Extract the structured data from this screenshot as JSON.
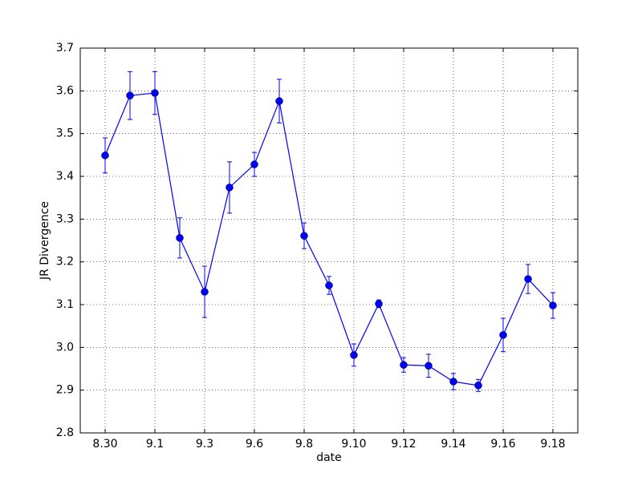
{
  "chart_data": {
    "type": "line",
    "xlabel": "date",
    "ylabel": "JR Divergence",
    "categories": [
      "8.30",
      null,
      "9.1",
      null,
      "9.3",
      null,
      "9.6",
      null,
      "9.8",
      null,
      "9.10",
      null,
      "9.12",
      null,
      "9.14",
      null,
      "9.16",
      null,
      "9.18"
    ],
    "series": [
      {
        "color": "#0000ff",
        "values": [
          3.449,
          3.589,
          3.595,
          3.256,
          3.13,
          3.374,
          3.428,
          3.576,
          3.261,
          3.145,
          2.982,
          3.102,
          2.959,
          2.957,
          2.92,
          2.911,
          3.029,
          3.16,
          3.098
        ],
        "errors": [
          0.041,
          0.056,
          0.05,
          0.047,
          0.06,
          0.06,
          0.028,
          0.051,
          0.03,
          0.021,
          0.026,
          0.009,
          0.017,
          0.027,
          0.019,
          0.014,
          0.039,
          0.034,
          0.03
        ]
      }
    ],
    "ylim": [
      2.8,
      3.7
    ],
    "yticks": [
      2.8,
      2.9,
      {
        "value": 3,
        "label": "3.0"
      },
      3.1,
      3.2,
      3.3,
      3.4,
      3.5,
      3.6,
      3.7
    ],
    "grid": true
  }
}
